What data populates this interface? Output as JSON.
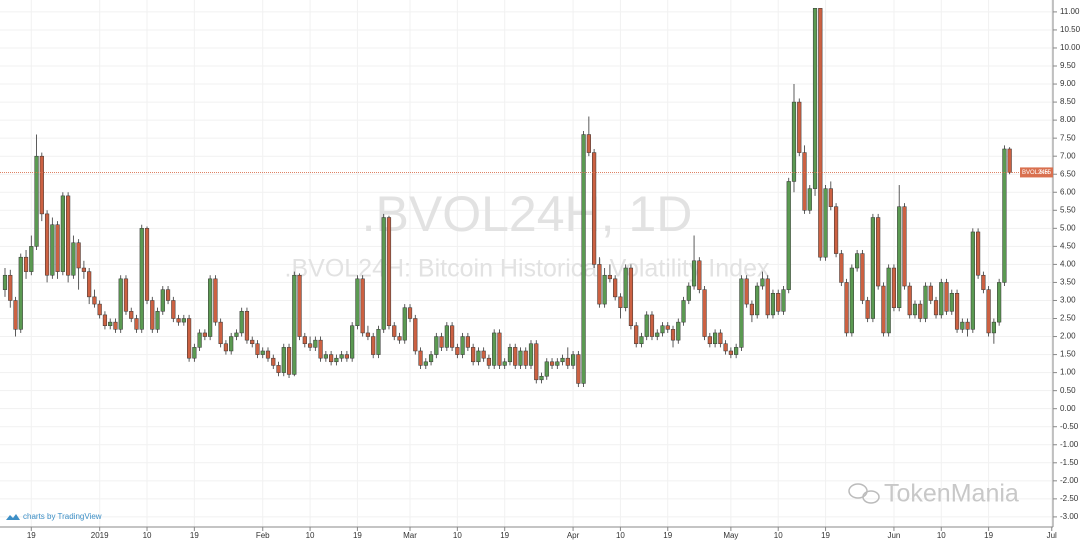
{
  "chart_data": {
    "type": "candlestick",
    "watermark": ".BVOL24H, 1D",
    "watermark_subtitle": ".BVOL24H: Bitcoin Historical Volatility Index",
    "symbol_label": "BVOL24H",
    "credit": "charts by TradingView",
    "brand": "TokenMania",
    "up_color": "#5b9a52",
    "down_color": "#cc6142",
    "price_line_color": "#d9704f",
    "grid": true,
    "xlim": [
      -0.95,
      199.24
    ],
    "xticks": [
      {
        "value": 5,
        "label": "19"
      },
      {
        "value": 18,
        "label": "2019"
      },
      {
        "value": 27,
        "label": "10"
      },
      {
        "value": 36,
        "label": "19"
      },
      {
        "value": 49,
        "label": "Feb"
      },
      {
        "value": 58,
        "label": "10"
      },
      {
        "value": 67,
        "label": "19"
      },
      {
        "value": 77,
        "label": "Mar"
      },
      {
        "value": 86,
        "label": "10"
      },
      {
        "value": 95,
        "label": "19"
      },
      {
        "value": 108,
        "label": "Apr"
      },
      {
        "value": 117,
        "label": "10"
      },
      {
        "value": 126,
        "label": "19"
      },
      {
        "value": 138,
        "label": "May"
      },
      {
        "value": 147,
        "label": "10"
      },
      {
        "value": 156,
        "label": "19"
      },
      {
        "value": 169,
        "label": "Jun"
      },
      {
        "value": 178,
        "label": "10"
      },
      {
        "value": 187,
        "label": "19"
      },
      {
        "value": 199,
        "label": "Jul"
      }
    ],
    "ylim": [
      -3.28,
      11.33
    ],
    "yticks": [
      {
        "value": 11,
        "label": "11.00"
      },
      {
        "value": 10.5,
        "label": "10.50"
      },
      {
        "value": 10,
        "label": "10.00"
      },
      {
        "value": 9.5,
        "label": "9.50"
      },
      {
        "value": 9,
        "label": "9.00"
      },
      {
        "value": 8.5,
        "label": "8.50"
      },
      {
        "value": 8,
        "label": "8.00"
      },
      {
        "value": 7.5,
        "label": "7.50"
      },
      {
        "value": 7,
        "label": "7.00"
      },
      {
        "value": 6.5,
        "label": "6.50"
      },
      {
        "value": 6,
        "label": "6.00"
      },
      {
        "value": 5.5,
        "label": "5.50"
      },
      {
        "value": 5,
        "label": "5.00"
      },
      {
        "value": 4.5,
        "label": "4.50"
      },
      {
        "value": 4,
        "label": "4.00"
      },
      {
        "value": 3.5,
        "label": "3.50"
      },
      {
        "value": 3,
        "label": "3.00"
      },
      {
        "value": 2.5,
        "label": "2.50"
      },
      {
        "value": 2,
        "label": "2.00"
      },
      {
        "value": 1.5,
        "label": "1.50"
      },
      {
        "value": 1,
        "label": "1.00"
      },
      {
        "value": 0.5,
        "label": "0.50"
      },
      {
        "value": 0,
        "label": "0.00"
      },
      {
        "value": -0.5,
        "label": "-0.50"
      },
      {
        "value": -1,
        "label": "-1.00"
      },
      {
        "value": -1.5,
        "label": "-1.50"
      },
      {
        "value": -2,
        "label": "-2.00"
      },
      {
        "value": -2.5,
        "label": "-2.50"
      },
      {
        "value": -3,
        "label": "-3.00"
      }
    ],
    "ohlc": [
      [
        3.3,
        3.9,
        3.1,
        3.7
      ],
      [
        3.7,
        3.85,
        2.8,
        3.0
      ],
      [
        3.0,
        3.1,
        2.0,
        2.2
      ],
      [
        2.2,
        4.3,
        2.1,
        4.2
      ],
      [
        4.2,
        4.4,
        3.6,
        3.8
      ],
      [
        3.8,
        4.8,
        3.7,
        4.5
      ],
      [
        4.5,
        7.6,
        4.4,
        7.0
      ],
      [
        7.0,
        7.1,
        5.2,
        5.4
      ],
      [
        5.4,
        5.5,
        3.5,
        3.7
      ],
      [
        3.7,
        5.3,
        3.6,
        5.1
      ],
      [
        5.1,
        5.2,
        3.6,
        3.8
      ],
      [
        3.8,
        6.0,
        3.7,
        5.9
      ],
      [
        5.9,
        6.0,
        3.5,
        3.7
      ],
      [
        3.7,
        4.8,
        3.6,
        4.6
      ],
      [
        4.6,
        4.7,
        3.3,
        3.9
      ],
      [
        3.9,
        4.1,
        3.6,
        3.8
      ],
      [
        3.8,
        3.9,
        2.9,
        3.1
      ],
      [
        3.1,
        3.3,
        2.8,
        2.9
      ],
      [
        2.9,
        3.0,
        2.5,
        2.6
      ],
      [
        2.6,
        2.7,
        2.2,
        2.3
      ],
      [
        2.3,
        2.5,
        2.2,
        2.4
      ],
      [
        2.4,
        2.5,
        2.1,
        2.2
      ],
      [
        2.2,
        3.7,
        2.1,
        3.6
      ],
      [
        3.6,
        3.7,
        2.6,
        2.7
      ],
      [
        2.7,
        2.8,
        2.4,
        2.5
      ],
      [
        2.5,
        2.6,
        2.1,
        2.2
      ],
      [
        2.2,
        5.1,
        2.1,
        5.0
      ],
      [
        5.0,
        5.05,
        2.9,
        3.0
      ],
      [
        3.0,
        3.1,
        2.1,
        2.2
      ],
      [
        2.2,
        2.8,
        2.1,
        2.7
      ],
      [
        2.7,
        3.4,
        2.6,
        3.3
      ],
      [
        3.3,
        3.4,
        2.9,
        3.0
      ],
      [
        3.0,
        3.1,
        2.4,
        2.5
      ],
      [
        2.5,
        2.6,
        2.3,
        2.4
      ],
      [
        2.4,
        2.6,
        2.3,
        2.5
      ],
      [
        2.5,
        2.6,
        1.3,
        1.4
      ],
      [
        1.4,
        1.8,
        1.3,
        1.7
      ],
      [
        1.7,
        2.2,
        1.6,
        2.1
      ],
      [
        2.1,
        2.2,
        1.9,
        2.0
      ],
      [
        2.0,
        3.7,
        1.9,
        3.6
      ],
      [
        3.6,
        3.7,
        2.3,
        2.4
      ],
      [
        2.4,
        2.5,
        1.7,
        1.8
      ],
      [
        1.8,
        1.9,
        1.5,
        1.6
      ],
      [
        1.6,
        2.1,
        1.5,
        2.0
      ],
      [
        2.0,
        2.2,
        1.9,
        2.1
      ],
      [
        2.1,
        2.8,
        2.0,
        2.7
      ],
      [
        2.7,
        2.8,
        1.8,
        1.9
      ],
      [
        1.9,
        2.0,
        1.7,
        1.8
      ],
      [
        1.8,
        1.9,
        1.4,
        1.5
      ],
      [
        1.5,
        1.7,
        1.4,
        1.6
      ],
      [
        1.6,
        1.7,
        1.3,
        1.4
      ],
      [
        1.4,
        1.5,
        1.1,
        1.2
      ],
      [
        1.2,
        1.3,
        0.9,
        1.0
      ],
      [
        1.0,
        1.8,
        0.9,
        1.7
      ],
      [
        1.7,
        1.8,
        0.85,
        0.95
      ],
      [
        0.95,
        3.8,
        0.9,
        3.7
      ],
      [
        3.7,
        3.75,
        1.9,
        2.0
      ],
      [
        2.0,
        2.1,
        1.7,
        1.8
      ],
      [
        1.8,
        2.0,
        1.6,
        1.7
      ],
      [
        1.7,
        2.0,
        1.6,
        1.9
      ],
      [
        1.9,
        2.0,
        1.3,
        1.4
      ],
      [
        1.4,
        1.6,
        1.3,
        1.5
      ],
      [
        1.5,
        1.6,
        1.2,
        1.3
      ],
      [
        1.3,
        1.5,
        1.2,
        1.4
      ],
      [
        1.4,
        1.6,
        1.3,
        1.5
      ],
      [
        1.5,
        1.6,
        1.3,
        1.4
      ],
      [
        1.4,
        2.4,
        1.3,
        2.3
      ],
      [
        2.3,
        3.7,
        2.2,
        3.6
      ],
      [
        3.6,
        3.7,
        2.0,
        2.1
      ],
      [
        2.1,
        2.3,
        1.9,
        2.0
      ],
      [
        2.0,
        2.1,
        1.4,
        1.5
      ],
      [
        1.5,
        2.3,
        1.4,
        2.2
      ],
      [
        2.2,
        5.4,
        2.1,
        5.3
      ],
      [
        5.3,
        5.35,
        2.2,
        2.3
      ],
      [
        2.3,
        2.4,
        1.9,
        2.0
      ],
      [
        2.0,
        2.1,
        1.8,
        1.9
      ],
      [
        1.9,
        2.9,
        1.8,
        2.8
      ],
      [
        2.8,
        2.9,
        2.4,
        2.5
      ],
      [
        2.5,
        2.6,
        1.5,
        1.6
      ],
      [
        1.6,
        1.7,
        1.1,
        1.2
      ],
      [
        1.2,
        1.4,
        1.1,
        1.3
      ],
      [
        1.3,
        1.6,
        1.2,
        1.5
      ],
      [
        1.5,
        2.1,
        1.4,
        2.0
      ],
      [
        2.0,
        2.1,
        1.6,
        1.7
      ],
      [
        1.7,
        2.4,
        1.6,
        2.3
      ],
      [
        2.3,
        2.4,
        1.6,
        1.7
      ],
      [
        1.7,
        1.8,
        1.4,
        1.5
      ],
      [
        1.5,
        2.1,
        1.4,
        2.0
      ],
      [
        2.0,
        2.1,
        1.6,
        1.7
      ],
      [
        1.7,
        1.8,
        1.2,
        1.3
      ],
      [
        1.3,
        1.7,
        1.2,
        1.6
      ],
      [
        1.6,
        1.7,
        1.3,
        1.4
      ],
      [
        1.4,
        1.5,
        1.1,
        1.2
      ],
      [
        1.2,
        2.2,
        1.1,
        2.1
      ],
      [
        2.1,
        2.2,
        1.1,
        1.2
      ],
      [
        1.2,
        1.4,
        1.1,
        1.3
      ],
      [
        1.3,
        1.8,
        1.2,
        1.7
      ],
      [
        1.7,
        1.8,
        1.1,
        1.2
      ],
      [
        1.2,
        1.7,
        1.1,
        1.6
      ],
      [
        1.6,
        1.7,
        1.1,
        1.2
      ],
      [
        1.2,
        1.9,
        1.1,
        1.8
      ],
      [
        1.8,
        1.9,
        0.7,
        0.8
      ],
      [
        0.8,
        1.0,
        0.7,
        0.9
      ],
      [
        0.9,
        1.4,
        0.8,
        1.3
      ],
      [
        1.3,
        1.4,
        1.1,
        1.2
      ],
      [
        1.2,
        1.4,
        1.1,
        1.3
      ],
      [
        1.3,
        1.5,
        1.2,
        1.4
      ],
      [
        1.4,
        1.7,
        1.1,
        1.2
      ],
      [
        1.2,
        1.6,
        1.1,
        1.5
      ],
      [
        1.5,
        1.6,
        0.6,
        0.7
      ],
      [
        0.7,
        7.7,
        0.6,
        7.6
      ],
      [
        7.6,
        8.1,
        7.0,
        7.1
      ],
      [
        7.1,
        7.2,
        3.9,
        4.0
      ],
      [
        4.0,
        4.2,
        2.8,
        2.9
      ],
      [
        2.9,
        3.9,
        2.8,
        3.7
      ],
      [
        3.7,
        4.0,
        3.5,
        3.6
      ],
      [
        3.6,
        3.7,
        3.0,
        3.1
      ],
      [
        3.1,
        3.2,
        2.5,
        2.8
      ],
      [
        2.8,
        4.0,
        2.7,
        3.9
      ],
      [
        3.9,
        4.0,
        2.2,
        2.3
      ],
      [
        2.3,
        2.4,
        1.7,
        1.8
      ],
      [
        1.8,
        2.1,
        1.7,
        2.0
      ],
      [
        2.0,
        2.7,
        1.9,
        2.6
      ],
      [
        2.6,
        2.7,
        1.9,
        2.0
      ],
      [
        2.0,
        2.2,
        1.9,
        2.1
      ],
      [
        2.1,
        2.4,
        2.0,
        2.3
      ],
      [
        2.3,
        2.4,
        2.1,
        2.2
      ],
      [
        2.2,
        2.3,
        1.7,
        1.9
      ],
      [
        1.9,
        2.5,
        1.8,
        2.4
      ],
      [
        2.4,
        3.1,
        2.3,
        3.0
      ],
      [
        3.0,
        3.5,
        2.9,
        3.4
      ],
      [
        3.4,
        4.8,
        3.3,
        4.1
      ],
      [
        4.1,
        4.2,
        3.2,
        3.3
      ],
      [
        3.3,
        3.4,
        1.9,
        2.0
      ],
      [
        2.0,
        2.1,
        1.7,
        1.8
      ],
      [
        1.8,
        2.2,
        1.7,
        2.1
      ],
      [
        2.1,
        2.2,
        1.7,
        1.8
      ],
      [
        1.8,
        1.9,
        1.5,
        1.6
      ],
      [
        1.6,
        1.7,
        1.4,
        1.5
      ],
      [
        1.5,
        1.8,
        1.4,
        1.7
      ],
      [
        1.7,
        3.7,
        1.6,
        3.6
      ],
      [
        3.6,
        3.7,
        2.8,
        2.9
      ],
      [
        2.9,
        3.0,
        2.4,
        2.6
      ],
      [
        2.6,
        3.5,
        2.5,
        3.4
      ],
      [
        3.4,
        3.8,
        3.3,
        3.6
      ],
      [
        3.6,
        3.7,
        2.5,
        2.6
      ],
      [
        2.6,
        3.3,
        2.5,
        3.2
      ],
      [
        3.2,
        3.3,
        2.6,
        2.7
      ],
      [
        2.7,
        3.4,
        2.6,
        3.3
      ],
      [
        3.3,
        6.4,
        3.2,
        6.3
      ],
      [
        6.3,
        9.0,
        6.0,
        8.5
      ],
      [
        8.5,
        8.6,
        7.0,
        7.1
      ],
      [
        7.1,
        7.3,
        5.4,
        5.5
      ],
      [
        5.5,
        6.2,
        5.4,
        6.1
      ],
      [
        6.1,
        11.1,
        5.9,
        11.1
      ],
      [
        11.1,
        11.1,
        4.1,
        4.2
      ],
      [
        4.2,
        6.2,
        4.1,
        6.1
      ],
      [
        6.1,
        6.3,
        5.5,
        5.6
      ],
      [
        5.6,
        5.7,
        4.2,
        4.3
      ],
      [
        4.3,
        4.4,
        3.4,
        3.5
      ],
      [
        3.5,
        3.6,
        2.0,
        2.1
      ],
      [
        2.1,
        4.0,
        2.0,
        3.9
      ],
      [
        3.9,
        4.4,
        3.8,
        4.3
      ],
      [
        4.3,
        4.4,
        2.9,
        3.0
      ],
      [
        3.0,
        3.1,
        2.4,
        2.5
      ],
      [
        2.5,
        5.4,
        2.4,
        5.3
      ],
      [
        5.3,
        5.4,
        3.3,
        3.4
      ],
      [
        3.4,
        3.5,
        2.0,
        2.1
      ],
      [
        2.1,
        4.0,
        2.0,
        3.9
      ],
      [
        3.9,
        4.0,
        2.7,
        2.8
      ],
      [
        2.8,
        6.2,
        2.7,
        5.6
      ],
      [
        5.6,
        5.7,
        3.3,
        3.4
      ],
      [
        3.4,
        3.5,
        2.5,
        2.6
      ],
      [
        2.6,
        3.0,
        2.5,
        2.9
      ],
      [
        2.9,
        3.0,
        2.4,
        2.5
      ],
      [
        2.5,
        3.5,
        2.4,
        3.4
      ],
      [
        3.4,
        3.5,
        2.9,
        3.0
      ],
      [
        3.0,
        3.1,
        2.5,
        2.6
      ],
      [
        2.6,
        3.6,
        2.5,
        3.5
      ],
      [
        3.5,
        3.6,
        2.6,
        2.7
      ],
      [
        2.7,
        3.3,
        2.6,
        3.2
      ],
      [
        3.2,
        3.3,
        2.1,
        2.2
      ],
      [
        2.2,
        2.5,
        2.1,
        2.4
      ],
      [
        2.4,
        2.5,
        2.0,
        2.2
      ],
      [
        2.2,
        5.0,
        2.1,
        4.9
      ],
      [
        4.9,
        5.0,
        3.6,
        3.7
      ],
      [
        3.7,
        3.8,
        3.2,
        3.3
      ],
      [
        3.3,
        3.4,
        2.0,
        2.1
      ],
      [
        2.1,
        2.5,
        1.8,
        2.4
      ],
      [
        2.4,
        3.6,
        2.3,
        3.5
      ],
      [
        3.5,
        7.3,
        3.4,
        7.2
      ],
      [
        7.2,
        7.25,
        6.5,
        6.55
      ]
    ]
  }
}
